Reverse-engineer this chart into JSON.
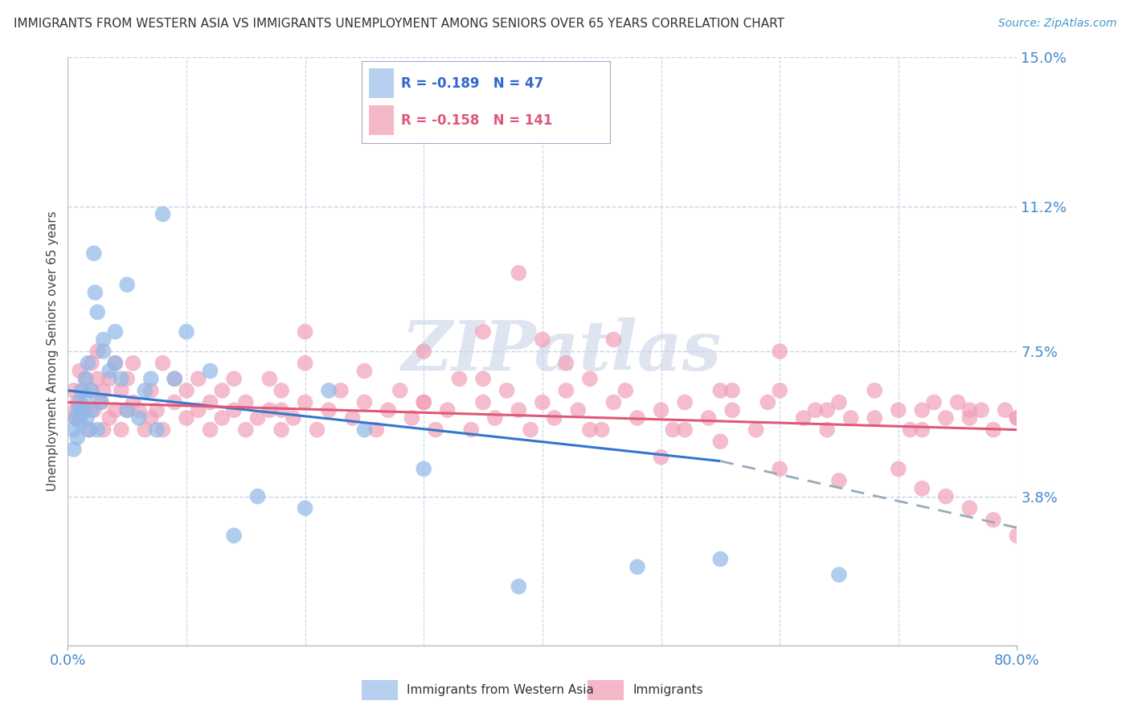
{
  "title": "IMMIGRANTS FROM WESTERN ASIA VS IMMIGRANTS UNEMPLOYMENT AMONG SENIORS OVER 65 YEARS CORRELATION CHART",
  "source": "Source: ZipAtlas.com",
  "ylabel": "Unemployment Among Seniors over 65 years",
  "xlim": [
    0.0,
    0.8
  ],
  "ylim": [
    0.0,
    0.15
  ],
  "yticks": [
    0.038,
    0.075,
    0.112,
    0.15
  ],
  "ytick_labels": [
    "3.8%",
    "7.5%",
    "11.2%",
    "15.0%"
  ],
  "grid_color": "#c8d4e8",
  "background_color": "#ffffff",
  "series1_color": "#90b8e8",
  "series2_color": "#f0a0b8",
  "watermark": "ZIPatlas",
  "watermark_color": "#c8d4e8",
  "legend_box_color1": "#b8d0f0",
  "legend_box_color2": "#f4b8c8",
  "legend_R1": "-0.189",
  "legend_N1": "47",
  "legend_R2": "-0.158",
  "legend_N2": "141",
  "trend1_color": "#3377cc",
  "trend2_color": "#e05878",
  "trend_dashed_color": "#99aabb",
  "trend1_x0": 0.0,
  "trend1_y0": 0.065,
  "trend1_x1": 0.55,
  "trend1_y1": 0.047,
  "trend1_dash_x0": 0.55,
  "trend1_dash_y0": 0.047,
  "trend1_dash_x1": 0.8,
  "trend1_dash_y1": 0.03,
  "trend2_x0": 0.0,
  "trend2_y0": 0.062,
  "trend2_x1": 0.8,
  "trend2_y1": 0.055,
  "blue_x": [
    0.005,
    0.005,
    0.007,
    0.008,
    0.009,
    0.01,
    0.01,
    0.012,
    0.012,
    0.015,
    0.015,
    0.016,
    0.017,
    0.018,
    0.02,
    0.02,
    0.022,
    0.023,
    0.025,
    0.025,
    0.028,
    0.03,
    0.03,
    0.035,
    0.04,
    0.04,
    0.045,
    0.05,
    0.05,
    0.06,
    0.065,
    0.07,
    0.075,
    0.08,
    0.09,
    0.1,
    0.12,
    0.14,
    0.16,
    0.2,
    0.22,
    0.25,
    0.3,
    0.38,
    0.48,
    0.55,
    0.65
  ],
  "blue_y": [
    0.055,
    0.05,
    0.058,
    0.053,
    0.06,
    0.062,
    0.057,
    0.065,
    0.06,
    0.068,
    0.063,
    0.058,
    0.072,
    0.055,
    0.06,
    0.065,
    0.1,
    0.09,
    0.085,
    0.055,
    0.062,
    0.075,
    0.078,
    0.07,
    0.08,
    0.072,
    0.068,
    0.06,
    0.092,
    0.058,
    0.065,
    0.068,
    0.055,
    0.11,
    0.068,
    0.08,
    0.07,
    0.028,
    0.038,
    0.035,
    0.065,
    0.055,
    0.045,
    0.015,
    0.02,
    0.022,
    0.018
  ],
  "pink_x": [
    0.005,
    0.006,
    0.007,
    0.008,
    0.01,
    0.01,
    0.012,
    0.015,
    0.015,
    0.018,
    0.02,
    0.02,
    0.022,
    0.025,
    0.025,
    0.028,
    0.03,
    0.03,
    0.035,
    0.035,
    0.04,
    0.04,
    0.045,
    0.045,
    0.05,
    0.05,
    0.055,
    0.055,
    0.06,
    0.065,
    0.07,
    0.07,
    0.075,
    0.08,
    0.08,
    0.09,
    0.09,
    0.1,
    0.1,
    0.11,
    0.11,
    0.12,
    0.12,
    0.13,
    0.13,
    0.14,
    0.14,
    0.15,
    0.15,
    0.16,
    0.17,
    0.17,
    0.18,
    0.18,
    0.19,
    0.2,
    0.2,
    0.21,
    0.22,
    0.23,
    0.24,
    0.25,
    0.26,
    0.27,
    0.28,
    0.29,
    0.3,
    0.31,
    0.32,
    0.33,
    0.34,
    0.35,
    0.36,
    0.37,
    0.38,
    0.39,
    0.4,
    0.41,
    0.42,
    0.43,
    0.44,
    0.46,
    0.47,
    0.48,
    0.5,
    0.51,
    0.52,
    0.54,
    0.55,
    0.56,
    0.58,
    0.59,
    0.6,
    0.62,
    0.63,
    0.64,
    0.65,
    0.66,
    0.68,
    0.7,
    0.71,
    0.72,
    0.73,
    0.74,
    0.75,
    0.76,
    0.77,
    0.78,
    0.79,
    0.8,
    0.3,
    0.35,
    0.38,
    0.4,
    0.42,
    0.44,
    0.46,
    0.52,
    0.56,
    0.6,
    0.64,
    0.68,
    0.72,
    0.76,
    0.8,
    0.2,
    0.25,
    0.3,
    0.35,
    0.45,
    0.5,
    0.55,
    0.6,
    0.65,
    0.7,
    0.72,
    0.74,
    0.76,
    0.78,
    0.8,
    0.18
  ],
  "pink_y": [
    0.065,
    0.058,
    0.06,
    0.062,
    0.058,
    0.07,
    0.065,
    0.06,
    0.068,
    0.055,
    0.065,
    0.072,
    0.06,
    0.068,
    0.075,
    0.062,
    0.055,
    0.065,
    0.058,
    0.068,
    0.06,
    0.072,
    0.055,
    0.065,
    0.06,
    0.068,
    0.062,
    0.072,
    0.06,
    0.055,
    0.065,
    0.058,
    0.06,
    0.072,
    0.055,
    0.062,
    0.068,
    0.058,
    0.065,
    0.06,
    0.068,
    0.055,
    0.062,
    0.058,
    0.065,
    0.06,
    0.068,
    0.055,
    0.062,
    0.058,
    0.068,
    0.06,
    0.055,
    0.065,
    0.058,
    0.062,
    0.072,
    0.055,
    0.06,
    0.065,
    0.058,
    0.062,
    0.055,
    0.06,
    0.065,
    0.058,
    0.062,
    0.055,
    0.06,
    0.068,
    0.055,
    0.062,
    0.058,
    0.065,
    0.06,
    0.055,
    0.062,
    0.058,
    0.065,
    0.06,
    0.055,
    0.062,
    0.065,
    0.058,
    0.06,
    0.055,
    0.062,
    0.058,
    0.065,
    0.06,
    0.055,
    0.062,
    0.065,
    0.058,
    0.06,
    0.055,
    0.062,
    0.058,
    0.065,
    0.06,
    0.055,
    0.06,
    0.062,
    0.058,
    0.062,
    0.058,
    0.06,
    0.055,
    0.06,
    0.058,
    0.075,
    0.08,
    0.095,
    0.078,
    0.072,
    0.068,
    0.078,
    0.055,
    0.065,
    0.075,
    0.06,
    0.058,
    0.055,
    0.06,
    0.058,
    0.08,
    0.07,
    0.062,
    0.068,
    0.055,
    0.048,
    0.052,
    0.045,
    0.042,
    0.045,
    0.04,
    0.038,
    0.035,
    0.032,
    0.028,
    0.06
  ]
}
